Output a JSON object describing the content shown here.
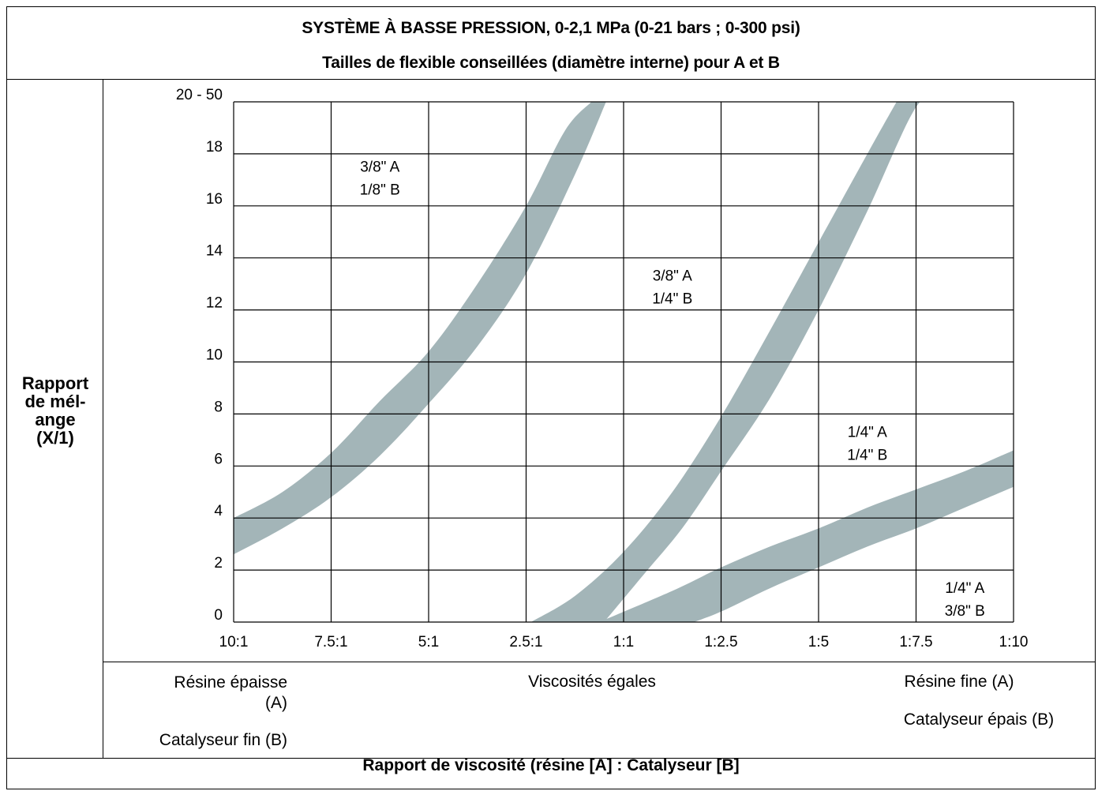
{
  "header": {
    "title": "SYSTÈME À BASSE PRESSION, 0-2,1 MPa (0-21 bars ; 0-300 psi)",
    "subtitle": "Tailles de flexible conseillées (diamètre interne) pour A et B"
  },
  "y_axis_label": [
    "Rapport",
    "de mél-",
    "ange",
    "(X/1)"
  ],
  "notes": {
    "left_line1": "Résine épaisse",
    "left_line2": "(A)",
    "left_line3": "Catalyseur fin (B)",
    "center": "Viscosités égales",
    "right_line1": "Résine fine (A)",
    "right_line2": "Catalyseur épais (B)"
  },
  "footer": "Rapport de viscosité (résine [A] : Catalyseur [B]",
  "chart_data": {
    "type": "area",
    "xlabel": "Rapport de viscosité (résine [A] : Catalyseur [B]",
    "ylabel": "Rapport de mélange (X/1)",
    "x_categories": [
      "10:1",
      "7.5:1",
      "5:1",
      "2.5:1",
      "1:1",
      "1:2.5",
      "1:5",
      "1:7.5",
      "1:10"
    ],
    "x_range": [
      0,
      8
    ],
    "y_ticks": [
      "0",
      "2",
      "4",
      "6",
      "8",
      "10",
      "12",
      "14",
      "16",
      "18",
      "20 - 50"
    ],
    "ylim": [
      0,
      20
    ],
    "grid": true,
    "band_color": "#a3b5b8",
    "bands": [
      {
        "upper": [
          [
            0,
            4.0
          ],
          [
            0.5,
            5.0
          ],
          [
            1,
            6.5
          ],
          [
            1.5,
            8.5
          ],
          [
            2,
            10.4
          ],
          [
            2.5,
            13.0
          ],
          [
            3,
            16.0
          ],
          [
            3.4,
            18.9
          ],
          [
            3.67,
            20
          ]
        ],
        "lower": [
          [
            0,
            2.6
          ],
          [
            0.5,
            3.6
          ],
          [
            1,
            4.8
          ],
          [
            1.5,
            6.4
          ],
          [
            2,
            8.4
          ],
          [
            2.5,
            10.6
          ],
          [
            3,
            13.4
          ],
          [
            3.5,
            17.2
          ],
          [
            3.82,
            20
          ]
        ]
      },
      {
        "upper": [
          [
            3.05,
            0
          ],
          [
            3.5,
            1.0
          ],
          [
            4,
            2.7
          ],
          [
            4.5,
            5.0
          ],
          [
            5,
            7.9
          ],
          [
            5.5,
            11.2
          ],
          [
            6,
            14.6
          ],
          [
            6.5,
            18.0
          ],
          [
            6.8,
            20
          ]
        ],
        "lower": [
          [
            3.8,
            0
          ],
          [
            4.2,
            1.8
          ],
          [
            4.6,
            3.6
          ],
          [
            5,
            5.8
          ],
          [
            5.5,
            8.6
          ],
          [
            6,
            12.0
          ],
          [
            6.5,
            15.8
          ],
          [
            7,
            19.8
          ],
          [
            7.25,
            20
          ]
        ]
      },
      {
        "upper": [
          [
            3.75,
            0
          ],
          [
            4.5,
            1.2
          ],
          [
            5,
            2.1
          ],
          [
            5.5,
            2.9
          ],
          [
            6,
            3.6
          ],
          [
            6.5,
            4.4
          ],
          [
            7,
            5.1
          ],
          [
            7.5,
            5.8
          ],
          [
            8,
            6.6
          ]
        ],
        "lower": [
          [
            4.72,
            0
          ],
          [
            5,
            0.4
          ],
          [
            5.5,
            1.3
          ],
          [
            6,
            2.1
          ],
          [
            6.5,
            2.9
          ],
          [
            7,
            3.6
          ],
          [
            7.5,
            4.4
          ],
          [
            8,
            5.2
          ]
        ]
      }
    ],
    "zone_labels": [
      {
        "line1": "3/8\" A",
        "line2": "1/8\" B",
        "x": 1.5,
        "y": 17.2
      },
      {
        "line1": "3/8\" A",
        "line2": "1/4\" B",
        "x": 4.5,
        "y": 13.0
      },
      {
        "line1": "1/4\" A",
        "line2": "1/4\" B",
        "x": 6.5,
        "y": 7.0
      },
      {
        "line1": "1/4\" A",
        "line2": "3/8\" B",
        "x": 7.5,
        "y": 1.0
      }
    ]
  }
}
